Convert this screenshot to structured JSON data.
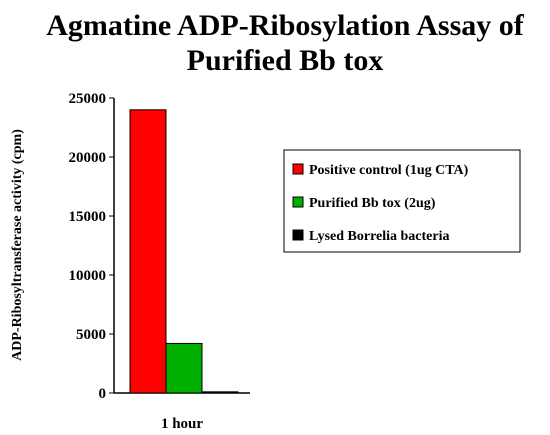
{
  "chart_data": {
    "type": "bar",
    "title_lines": [
      "Agmatine ADP-Ribosylation Assay of",
      "Purified Bb tox"
    ],
    "categories": [
      "1 hour"
    ],
    "ylabel": "ADP-Ribosyltransferase activity (cpm)",
    "xlabel": "",
    "ylim": [
      0,
      25000
    ],
    "yticks": [
      "0",
      "5000",
      "10000",
      "15000",
      "20000",
      "25000"
    ],
    "grid": false,
    "legend_position": "right",
    "series": [
      {
        "name": "Positive control (1ug CTA)",
        "values": [
          24000
        ],
        "color": "#ff0000"
      },
      {
        "name": "Purified Bb tox (2ug)",
        "values": [
          4200
        ],
        "color": "#00b000"
      },
      {
        "name": "Lysed Borrelia bacteria",
        "values": [
          100
        ],
        "color": "#000000"
      }
    ]
  }
}
